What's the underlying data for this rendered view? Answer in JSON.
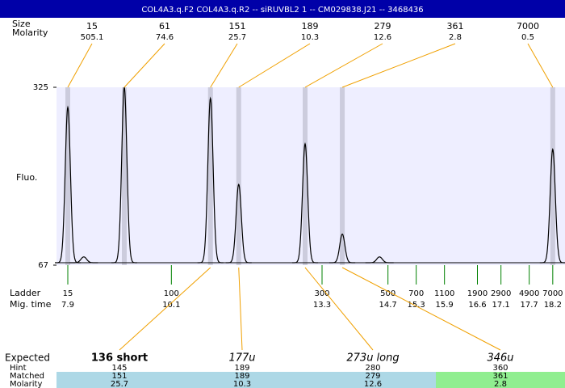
{
  "title": "COL4A3.q.F2  COL4A3.q.R2 -- siRUVBL2 1 -- CM029838.J21 -- 3468436",
  "size_label": "Size",
  "molarity_label": "Molarity",
  "y_axis": {
    "label": "Fluo.",
    "ticks": [
      325,
      67
    ]
  },
  "time_range": [
    7.66,
    18.46
  ],
  "baseline": 70.5,
  "peaks": [
    {
      "size": 15,
      "molarity": 505.1,
      "time": 7.9,
      "height": 296
    },
    {
      "size": 61,
      "molarity": 74.6,
      "time": 9.1,
      "height": 325
    },
    {
      "size": 151,
      "molarity": 25.7,
      "time": 10.93,
      "height": 309
    },
    {
      "size": 189,
      "molarity": 10.3,
      "time": 11.53,
      "height": 184
    },
    {
      "size": 279,
      "molarity": 12.6,
      "time": 12.94,
      "height": 243
    },
    {
      "size": 361,
      "molarity": 2.8,
      "time": 13.73,
      "height": 112
    },
    {
      "size": 7000,
      "molarity": 0.5,
      "time": 18.2,
      "height": 235
    }
  ],
  "minor_peaks": [
    {
      "time": 8.24,
      "height": 79
    },
    {
      "time": 14.52,
      "height": 79
    }
  ],
  "ladder": {
    "label": "Ladder",
    "time_label": "Mig. time",
    "sizes": [
      15,
      100,
      300,
      500,
      700,
      1100,
      1900,
      2900,
      4900,
      7000
    ],
    "times": [
      7.9,
      10.1,
      13.3,
      14.7,
      15.3,
      15.9,
      16.6,
      17.1,
      17.7,
      18.2
    ]
  },
  "expected": {
    "label": "Expected",
    "hint_label": "Hint",
    "matched_label": "Matched",
    "molarity_label": "Molarity",
    "items": [
      {
        "name": "136 short",
        "hint": 145,
        "matched": 151,
        "molarity": 25.7
      },
      {
        "name": "177u",
        "hint": 189,
        "matched": 189,
        "molarity": 10.3
      },
      {
        "name": "273u long",
        "hint": 280,
        "matched": 279,
        "molarity": 12.6
      },
      {
        "name": "346u",
        "hint": 360,
        "matched": 361,
        "molarity": 2.8
      }
    ]
  }
}
